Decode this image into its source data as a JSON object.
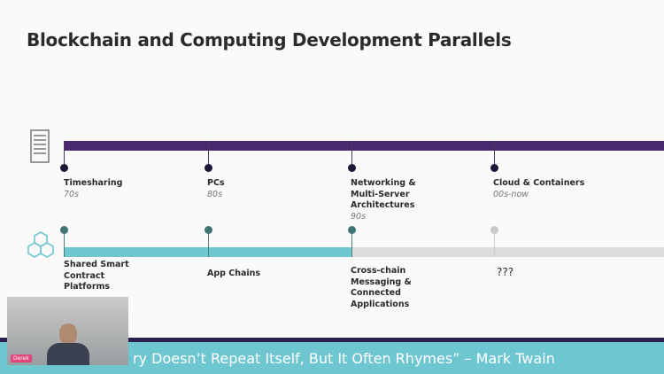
{
  "title": "Blockchain and Computing Development Parallels",
  "computing": [
    {
      "label": "Timesharing",
      "era": "70s"
    },
    {
      "label": "PCs",
      "era": "80s"
    },
    {
      "label": "Networking & Multi-Server Architectures",
      "era": "90s"
    },
    {
      "label": "Cloud & Containers",
      "era": "00s-now"
    }
  ],
  "blockchain": [
    {
      "label": "Shared Smart Contract Platforms"
    },
    {
      "label": "App Chains"
    },
    {
      "label": "Cross-chain Messaging & Connected Applications"
    },
    {
      "label": "???"
    }
  ],
  "quote": "ry Doesn’t Repeat Itself, But It Often Rhymes”  – Mark Twain",
  "video": {
    "name": "Derek"
  },
  "colors": {
    "purple": "#4a2a6e",
    "teal": "#6ec6d0",
    "gray": "#dddddd"
  }
}
